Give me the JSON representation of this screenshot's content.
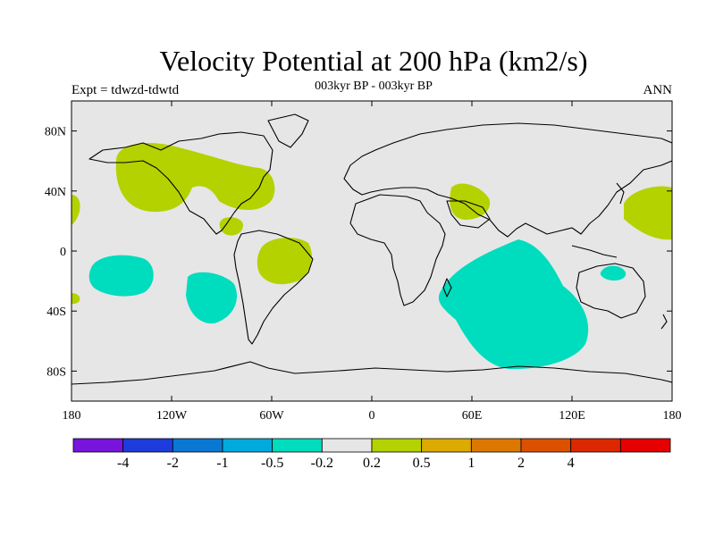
{
  "title": "Velocity Potential at 200 hPa (km2/s)",
  "subtitle": "003kyr BP - 003kyr BP",
  "left_label": "Expt = tdwzd-tdwtd",
  "right_label": "ANN",
  "colors": {
    "ocean": "#e6e6e6",
    "positive_fill": "#b4d200",
    "negative_fill": "#00dcbe",
    "coastline": "#000000"
  },
  "lat_ticks": [
    "80N",
    "40N",
    "0",
    "40S",
    "80S"
  ],
  "lon_ticks": [
    "180",
    "120W",
    "60W",
    "0",
    "60E",
    "120E",
    "180"
  ],
  "colorbar": {
    "colors": [
      "#7814dc",
      "#1e3cdc",
      "#0a78d2",
      "#00aadc",
      "#00dcbe",
      "#e6e6e6",
      "#b4d200",
      "#dcaa00",
      "#dc7800",
      "#dc5000",
      "#dc2800",
      "#e60000"
    ],
    "labels": [
      "-4",
      "-2",
      "-1",
      "-0.5",
      "-0.2",
      "0.2",
      "0.5",
      "1",
      "2",
      "4"
    ]
  }
}
